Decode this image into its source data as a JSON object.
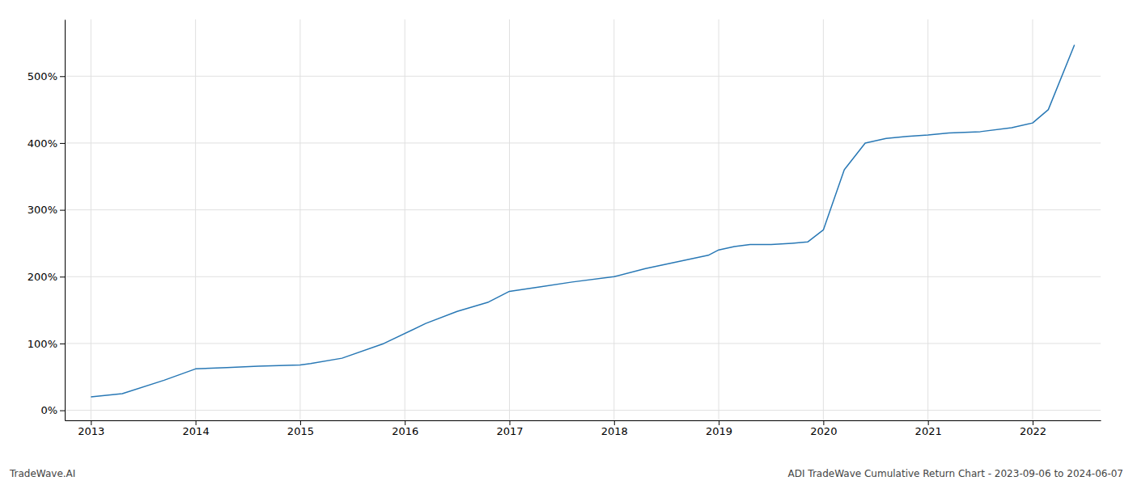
{
  "chart_data": {
    "type": "line",
    "x": [
      2013.0,
      2013.3,
      2013.7,
      2014.0,
      2014.3,
      2014.6,
      2015.0,
      2015.1,
      2015.4,
      2015.8,
      2016.2,
      2016.5,
      2016.8,
      2017.0,
      2017.3,
      2017.6,
      2018.0,
      2018.3,
      2018.6,
      2018.9,
      2019.0,
      2019.15,
      2019.3,
      2019.5,
      2019.7,
      2019.85,
      2020.0,
      2020.2,
      2020.4,
      2020.6,
      2020.8,
      2021.0,
      2021.2,
      2021.5,
      2021.8,
      2022.0,
      2022.15,
      2022.4
    ],
    "values": [
      20,
      25,
      45,
      62,
      64,
      66,
      68,
      70,
      78,
      100,
      130,
      148,
      162,
      178,
      185,
      192,
      200,
      212,
      222,
      232,
      240,
      245,
      248,
      248,
      250,
      252,
      270,
      360,
      400,
      407,
      410,
      412,
      415,
      417,
      423,
      430,
      450,
      547
    ],
    "color": "#2878b5",
    "xlim": [
      2012.75,
      2022.65
    ],
    "ylim": [
      -15,
      585
    ],
    "xticks": [
      2013,
      2014,
      2015,
      2016,
      2017,
      2018,
      2019,
      2020,
      2021,
      2022
    ],
    "yticks": [
      {
        "value": 0,
        "label": "0%"
      },
      {
        "value": 100,
        "label": "100%"
      },
      {
        "value": 200,
        "label": "200%"
      },
      {
        "value": 300,
        "label": "300%"
      },
      {
        "value": 400,
        "label": "400%"
      },
      {
        "value": 500,
        "label": "500%"
      }
    ],
    "grid": true,
    "annotations": [
      "TradeWave.AI",
      "ADI TradeWave Cumulative Return Chart - 2023-09-06 to 2024-06-07"
    ]
  }
}
